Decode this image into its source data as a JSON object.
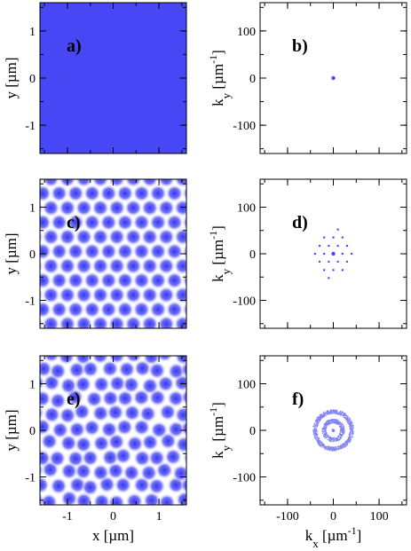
{
  "colors": {
    "blue": "#4747f5",
    "light": "#ffffff",
    "dot": "#4747f5"
  },
  "chart_data": [
    {
      "id": "a",
      "label": "a)",
      "type": "heatmap",
      "space": "real",
      "pattern": "uniform",
      "xlim": [
        -1.6,
        1.6
      ],
      "ylim": [
        -1.6,
        1.6
      ],
      "yticks": [
        "-1",
        "0",
        "1"
      ],
      "ylabel": "y [µm]"
    },
    {
      "id": "b",
      "label": "b)",
      "type": "scatter",
      "space": "momentum",
      "xlim": [
        -160,
        160
      ],
      "ylim": [
        -160,
        160
      ],
      "yticks": [
        "-100",
        "0",
        "100"
      ],
      "ylabel": "k_y [µm^-1]",
      "points": [
        [
          0,
          0
        ]
      ]
    },
    {
      "id": "c",
      "label": "c)",
      "type": "heatmap",
      "space": "real",
      "pattern": "hex-crystal",
      "xlim": [
        -1.6,
        1.6
      ],
      "ylim": [
        -1.6,
        1.6
      ],
      "yticks": [
        "-1",
        "0",
        "1"
      ],
      "ylabel": "y [µm]",
      "lattice_spacing": 0.36
    },
    {
      "id": "d",
      "label": "d)",
      "type": "scatter",
      "space": "momentum",
      "xlim": [
        -160,
        160
      ],
      "ylim": [
        -160,
        160
      ],
      "yticks": [
        "-100",
        "0",
        "100"
      ],
      "ylabel": "k_y [µm^-1]",
      "points": [
        [
          0,
          0
        ],
        [
          20,
          0
        ],
        [
          -20,
          0
        ],
        [
          10,
          17
        ],
        [
          -10,
          17
        ],
        [
          10,
          -17
        ],
        [
          -10,
          -17
        ],
        [
          40,
          0
        ],
        [
          -40,
          0
        ],
        [
          20,
          35
        ],
        [
          -20,
          35
        ],
        [
          20,
          -35
        ],
        [
          -20,
          -35
        ],
        [
          30,
          17
        ],
        [
          -30,
          17
        ],
        [
          30,
          -17
        ],
        [
          -30,
          -17
        ],
        [
          0,
          35
        ],
        [
          0,
          -35
        ],
        [
          10,
          52
        ],
        [
          -10,
          -52
        ]
      ]
    },
    {
      "id": "e",
      "label": "e)",
      "type": "heatmap",
      "space": "real",
      "pattern": "hex-glass",
      "xlim": [
        -1.6,
        1.6
      ],
      "ylim": [
        -1.6,
        1.6
      ],
      "yticks": [
        "-1",
        "0",
        "1"
      ],
      "xticks": [
        "-1",
        "0",
        "1"
      ],
      "ylabel": "y [µm]",
      "xlabel": "x [µm]",
      "lattice_spacing": 0.36
    },
    {
      "id": "f",
      "label": "f)",
      "type": "scatter",
      "space": "momentum",
      "xlim": [
        -160,
        160
      ],
      "ylim": [
        -160,
        160
      ],
      "yticks": [
        "-100",
        "0",
        "100"
      ],
      "xticks": [
        "-100",
        "0",
        "100"
      ],
      "ylabel": "k_y [µm^-1]",
      "xlabel": "k_x [µm^-1]",
      "rings": [
        0,
        20,
        40
      ]
    }
  ]
}
